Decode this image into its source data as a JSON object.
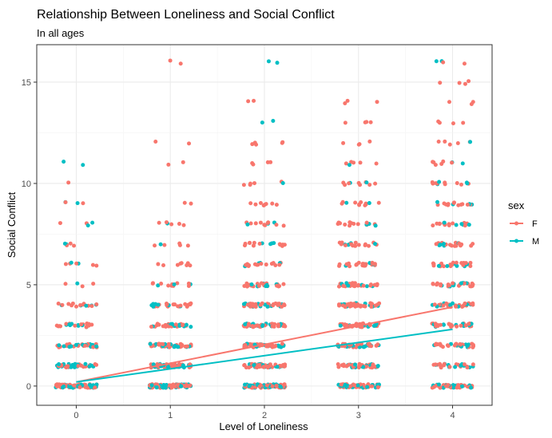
{
  "chart_data": {
    "type": "scatter",
    "title": "Relationship Between Loneliness and Social Conflict",
    "subtitle": "In all ages",
    "xlabel": "Level of Loneliness",
    "ylabel": "Social Conflict",
    "x_ticks": [
      0,
      1,
      2,
      3,
      4
    ],
    "y_ticks": [
      0,
      5,
      10,
      15
    ],
    "xlim": [
      -0.42,
      4.42
    ],
    "ylim": [
      -0.95,
      16.85
    ],
    "grid": true,
    "jitter_width": 0.22,
    "legend": {
      "title": "sex",
      "position": "right"
    },
    "series": [
      {
        "name": "F",
        "color": "#F8766D",
        "trend": {
          "x": [
            0,
            4
          ],
          "y": [
            0.2,
            3.9
          ]
        },
        "point_groups": [
          {
            "x": 0,
            "y": 0,
            "count": 60
          },
          {
            "x": 0,
            "y": 1,
            "count": 25
          },
          {
            "x": 0,
            "y": 2,
            "count": 22
          },
          {
            "x": 0,
            "y": 3,
            "count": 14
          },
          {
            "x": 0,
            "y": 4,
            "count": 12
          },
          {
            "x": 0,
            "y": 5,
            "count": 3
          },
          {
            "x": 0,
            "y": 6,
            "count": 5
          },
          {
            "x": 0,
            "y": 7,
            "count": 3
          },
          {
            "x": 0,
            "y": 8,
            "count": 2
          },
          {
            "x": 0,
            "y": 9,
            "count": 2
          },
          {
            "x": 0,
            "y": 10,
            "count": 1
          },
          {
            "x": 1,
            "y": 0,
            "count": 55
          },
          {
            "x": 1,
            "y": 1,
            "count": 35
          },
          {
            "x": 1,
            "y": 2,
            "count": 30
          },
          {
            "x": 1,
            "y": 3,
            "count": 25
          },
          {
            "x": 1,
            "y": 4,
            "count": 20
          },
          {
            "x": 1,
            "y": 5,
            "count": 10
          },
          {
            "x": 1,
            "y": 6,
            "count": 8
          },
          {
            "x": 1,
            "y": 7,
            "count": 5
          },
          {
            "x": 1,
            "y": 8,
            "count": 5
          },
          {
            "x": 1,
            "y": 9,
            "count": 2
          },
          {
            "x": 1,
            "y": 11,
            "count": 2
          },
          {
            "x": 1,
            "y": 12,
            "count": 2
          },
          {
            "x": 1,
            "y": 16,
            "count": 2
          },
          {
            "x": 2,
            "y": 0,
            "count": 55
          },
          {
            "x": 2,
            "y": 1,
            "count": 40
          },
          {
            "x": 2,
            "y": 2,
            "count": 40
          },
          {
            "x": 2,
            "y": 3,
            "count": 35
          },
          {
            "x": 2,
            "y": 4,
            "count": 30
          },
          {
            "x": 2,
            "y": 5,
            "count": 20
          },
          {
            "x": 2,
            "y": 6,
            "count": 15
          },
          {
            "x": 2,
            "y": 7,
            "count": 12
          },
          {
            "x": 2,
            "y": 8,
            "count": 10
          },
          {
            "x": 2,
            "y": 9,
            "count": 8
          },
          {
            "x": 2,
            "y": 10,
            "count": 5
          },
          {
            "x": 2,
            "y": 11,
            "count": 4
          },
          {
            "x": 2,
            "y": 12,
            "count": 5
          },
          {
            "x": 2,
            "y": 14,
            "count": 2
          },
          {
            "x": 3,
            "y": 0,
            "count": 40
          },
          {
            "x": 3,
            "y": 1,
            "count": 30
          },
          {
            "x": 3,
            "y": 2,
            "count": 30
          },
          {
            "x": 3,
            "y": 3,
            "count": 30
          },
          {
            "x": 3,
            "y": 4,
            "count": 30
          },
          {
            "x": 3,
            "y": 5,
            "count": 25
          },
          {
            "x": 3,
            "y": 6,
            "count": 20
          },
          {
            "x": 3,
            "y": 7,
            "count": 15
          },
          {
            "x": 3,
            "y": 8,
            "count": 12
          },
          {
            "x": 3,
            "y": 9,
            "count": 10
          },
          {
            "x": 3,
            "y": 10,
            "count": 8
          },
          {
            "x": 3,
            "y": 11,
            "count": 5
          },
          {
            "x": 3,
            "y": 12,
            "count": 4
          },
          {
            "x": 3,
            "y": 13,
            "count": 4
          },
          {
            "x": 3,
            "y": 14,
            "count": 3
          },
          {
            "x": 4,
            "y": 0,
            "count": 30
          },
          {
            "x": 4,
            "y": 1,
            "count": 20
          },
          {
            "x": 4,
            "y": 2,
            "count": 22
          },
          {
            "x": 4,
            "y": 3,
            "count": 22
          },
          {
            "x": 4,
            "y": 4,
            "count": 25
          },
          {
            "x": 4,
            "y": 5,
            "count": 20
          },
          {
            "x": 4,
            "y": 6,
            "count": 20
          },
          {
            "x": 4,
            "y": 7,
            "count": 15
          },
          {
            "x": 4,
            "y": 8,
            "count": 15
          },
          {
            "x": 4,
            "y": 9,
            "count": 12
          },
          {
            "x": 4,
            "y": 10,
            "count": 10
          },
          {
            "x": 4,
            "y": 11,
            "count": 6
          },
          {
            "x": 4,
            "y": 12,
            "count": 5
          },
          {
            "x": 4,
            "y": 13,
            "count": 4
          },
          {
            "x": 4,
            "y": 14,
            "count": 3
          },
          {
            "x": 4,
            "y": 15,
            "count": 4
          },
          {
            "x": 4,
            "y": 16,
            "count": 2
          }
        ]
      },
      {
        "name": "M",
        "color": "#00BFC4",
        "trend": {
          "x": [
            0,
            4
          ],
          "y": [
            0.2,
            2.8
          ]
        },
        "point_groups": [
          {
            "x": 0,
            "y": 0,
            "count": 40
          },
          {
            "x": 0,
            "y": 1,
            "count": 20
          },
          {
            "x": 0,
            "y": 2,
            "count": 15
          },
          {
            "x": 0,
            "y": 3,
            "count": 8
          },
          {
            "x": 0,
            "y": 4,
            "count": 5
          },
          {
            "x": 0,
            "y": 5,
            "count": 1
          },
          {
            "x": 0,
            "y": 6,
            "count": 2
          },
          {
            "x": 0,
            "y": 7,
            "count": 2
          },
          {
            "x": 0,
            "y": 8,
            "count": 2
          },
          {
            "x": 0,
            "y": 9,
            "count": 2
          },
          {
            "x": 0,
            "y": 11,
            "count": 2
          },
          {
            "x": 1,
            "y": 0,
            "count": 35
          },
          {
            "x": 1,
            "y": 1,
            "count": 20
          },
          {
            "x": 1,
            "y": 2,
            "count": 15
          },
          {
            "x": 1,
            "y": 3,
            "count": 10
          },
          {
            "x": 1,
            "y": 4,
            "count": 8
          },
          {
            "x": 1,
            "y": 5,
            "count": 3
          },
          {
            "x": 1,
            "y": 7,
            "count": 1
          },
          {
            "x": 1,
            "y": 8,
            "count": 1
          },
          {
            "x": 2,
            "y": 0,
            "count": 35
          },
          {
            "x": 2,
            "y": 1,
            "count": 20
          },
          {
            "x": 2,
            "y": 2,
            "count": 20
          },
          {
            "x": 2,
            "y": 3,
            "count": 15
          },
          {
            "x": 2,
            "y": 4,
            "count": 15
          },
          {
            "x": 2,
            "y": 5,
            "count": 8
          },
          {
            "x": 2,
            "y": 6,
            "count": 5
          },
          {
            "x": 2,
            "y": 7,
            "count": 4
          },
          {
            "x": 2,
            "y": 8,
            "count": 3
          },
          {
            "x": 2,
            "y": 10,
            "count": 1
          },
          {
            "x": 2,
            "y": 13,
            "count": 2
          },
          {
            "x": 2,
            "y": 16,
            "count": 2
          },
          {
            "x": 3,
            "y": 0,
            "count": 20
          },
          {
            "x": 3,
            "y": 1,
            "count": 15
          },
          {
            "x": 3,
            "y": 2,
            "count": 15
          },
          {
            "x": 3,
            "y": 3,
            "count": 12
          },
          {
            "x": 3,
            "y": 4,
            "count": 12
          },
          {
            "x": 3,
            "y": 5,
            "count": 8
          },
          {
            "x": 3,
            "y": 6,
            "count": 5
          },
          {
            "x": 3,
            "y": 7,
            "count": 4
          },
          {
            "x": 3,
            "y": 8,
            "count": 3
          },
          {
            "x": 3,
            "y": 9,
            "count": 2
          },
          {
            "x": 3,
            "y": 10,
            "count": 2
          },
          {
            "x": 3,
            "y": 11,
            "count": 1
          },
          {
            "x": 4,
            "y": 0,
            "count": 20
          },
          {
            "x": 4,
            "y": 1,
            "count": 10
          },
          {
            "x": 4,
            "y": 2,
            "count": 10
          },
          {
            "x": 4,
            "y": 3,
            "count": 10
          },
          {
            "x": 4,
            "y": 4,
            "count": 10
          },
          {
            "x": 4,
            "y": 5,
            "count": 8
          },
          {
            "x": 4,
            "y": 6,
            "count": 6
          },
          {
            "x": 4,
            "y": 7,
            "count": 5
          },
          {
            "x": 4,
            "y": 8,
            "count": 5
          },
          {
            "x": 4,
            "y": 9,
            "count": 4
          },
          {
            "x": 4,
            "y": 10,
            "count": 4
          },
          {
            "x": 4,
            "y": 11,
            "count": 2
          },
          {
            "x": 4,
            "y": 12,
            "count": 1
          },
          {
            "x": 4,
            "y": 16,
            "count": 2
          }
        ]
      }
    ]
  }
}
